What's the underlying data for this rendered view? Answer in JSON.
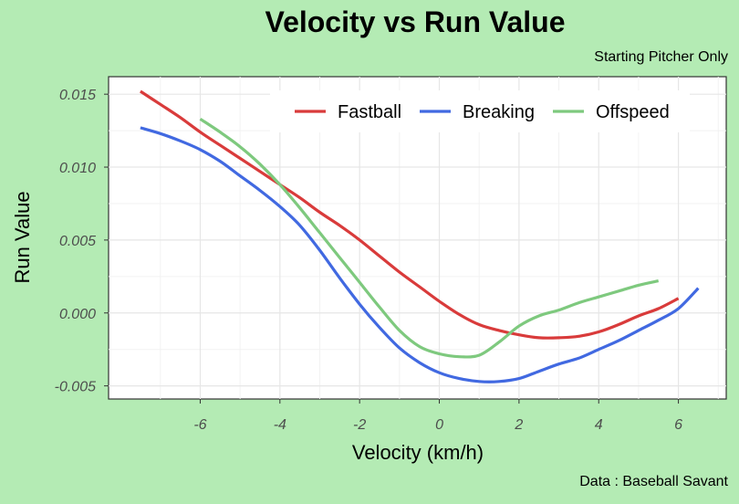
{
  "chart_data": {
    "type": "line",
    "title": "Velocity vs Run Value",
    "subtitle": "Starting Pitcher Only",
    "caption": "Data : Baseball Savant",
    "xlabel": "Velocity (km/h)",
    "ylabel": "Run Value",
    "xlim": [
      -8.3,
      7.2
    ],
    "ylim": [
      -0.0059,
      0.0162
    ],
    "x_ticks": [
      -6,
      -4,
      -2,
      0,
      2,
      4,
      6
    ],
    "x_tick_labels": [
      "-6",
      "-4",
      "-2",
      "0",
      "2",
      "4",
      "6"
    ],
    "y_ticks": [
      -0.005,
      0.0,
      0.005,
      0.01,
      0.015
    ],
    "y_tick_labels": [
      "-0.005",
      "0.000",
      "0.005",
      "0.010",
      "0.015"
    ],
    "grid": true,
    "legend_position": "top-right",
    "series": [
      {
        "name": "Fastball",
        "color": "#d93b3b",
        "x": [
          -7.5,
          -7,
          -6.5,
          -6,
          -5.5,
          -5,
          -4.5,
          -4,
          -3.5,
          -3,
          -2.5,
          -2,
          -1.5,
          -1,
          -0.5,
          0,
          0.5,
          1,
          1.5,
          2,
          2.5,
          3,
          3.5,
          4,
          4.5,
          5,
          5.5,
          6
        ],
        "y": [
          0.0152,
          0.0143,
          0.0134,
          0.0124,
          0.0115,
          0.0106,
          0.0097,
          0.0088,
          0.0079,
          0.0069,
          0.006,
          0.005,
          0.0039,
          0.0028,
          0.0018,
          0.0008,
          -0.0001,
          -0.0008,
          -0.0012,
          -0.0015,
          -0.0017,
          -0.0017,
          -0.0016,
          -0.0013,
          -0.0008,
          -0.0002,
          0.0003,
          0.001
        ]
      },
      {
        "name": "Breaking",
        "color": "#4169e1",
        "x": [
          -7.5,
          -7,
          -6.5,
          -6,
          -5.5,
          -5,
          -4.5,
          -4,
          -3.5,
          -3,
          -2.5,
          -2,
          -1.5,
          -1,
          -0.5,
          0,
          0.5,
          1,
          1.5,
          2,
          2.5,
          3,
          3.5,
          4,
          4.5,
          5,
          5.5,
          6,
          6.5
        ],
        "y": [
          0.0127,
          0.0123,
          0.0118,
          0.0112,
          0.0104,
          0.0094,
          0.0084,
          0.0073,
          0.006,
          0.0043,
          0.0024,
          0.0006,
          -0.001,
          -0.0024,
          -0.0034,
          -0.0041,
          -0.0045,
          -0.0047,
          -0.0047,
          -0.0045,
          -0.004,
          -0.0035,
          -0.0031,
          -0.0025,
          -0.0019,
          -0.0012,
          -0.0005,
          0.0003,
          0.0017
        ]
      },
      {
        "name": "Offspeed",
        "color": "#7ec97e",
        "x": [
          -6,
          -5.5,
          -5,
          -4.5,
          -4,
          -3.5,
          -3,
          -2.5,
          -2,
          -1.5,
          -1,
          -0.5,
          0,
          0.5,
          1,
          1.5,
          2,
          2.5,
          3,
          3.5,
          4,
          4.5,
          5,
          5.5
        ],
        "y": [
          0.0133,
          0.0124,
          0.0114,
          0.0102,
          0.0088,
          0.0072,
          0.0055,
          0.0038,
          0.0021,
          0.0004,
          -0.0012,
          -0.0023,
          -0.0028,
          -0.003,
          -0.0029,
          -0.002,
          -0.0009,
          -0.0002,
          0.0002,
          0.0007,
          0.0011,
          0.0015,
          0.0019,
          0.0022
        ]
      }
    ]
  }
}
